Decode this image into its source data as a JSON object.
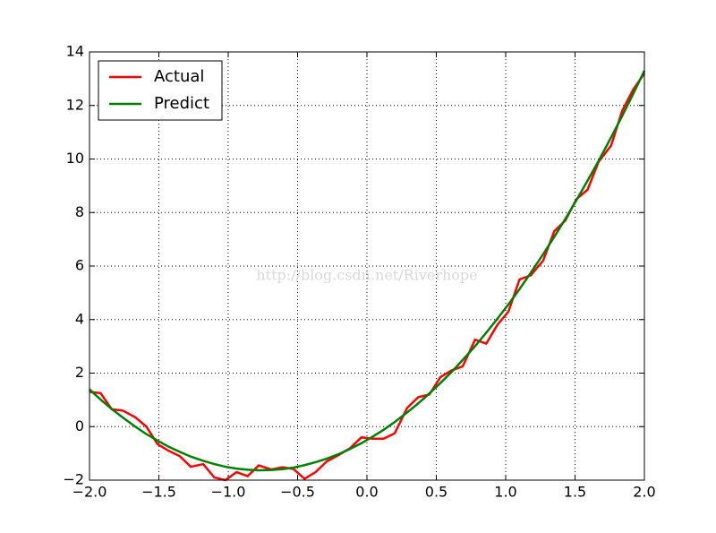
{
  "chart_data": {
    "type": "line",
    "x": [
      -2.0,
      -1.92,
      -1.84,
      -1.76,
      -1.67,
      -1.59,
      -1.51,
      -1.43,
      -1.35,
      -1.27,
      -1.18,
      -1.1,
      -1.02,
      -0.94,
      -0.86,
      -0.78,
      -0.69,
      -0.61,
      -0.53,
      -0.45,
      -0.37,
      -0.29,
      -0.2,
      -0.12,
      -0.04,
      0.04,
      0.12,
      0.2,
      0.29,
      0.37,
      0.45,
      0.53,
      0.61,
      0.69,
      0.78,
      0.86,
      0.94,
      1.02,
      1.1,
      1.18,
      1.27,
      1.35,
      1.43,
      1.51,
      1.59,
      1.67,
      1.76,
      1.84,
      1.92,
      2.0
    ],
    "series": [
      {
        "name": "Actual",
        "color": "#ff0000",
        "values": [
          1.3,
          1.25,
          0.65,
          0.6,
          0.35,
          0.0,
          -0.65,
          -0.9,
          -1.1,
          -1.5,
          -1.4,
          -1.9,
          -2.0,
          -1.7,
          -1.85,
          -1.45,
          -1.6,
          -1.52,
          -1.58,
          -1.95,
          -1.7,
          -1.3,
          -1.05,
          -0.8,
          -0.4,
          -0.45,
          -0.45,
          -0.25,
          0.7,
          1.1,
          1.2,
          1.85,
          2.1,
          2.25,
          3.25,
          3.1,
          3.8,
          4.3,
          5.5,
          5.65,
          6.2,
          7.3,
          7.7,
          8.5,
          8.85,
          9.9,
          10.5,
          11.8,
          12.6,
          13.2
        ]
      },
      {
        "name": "Predict",
        "color": "#008000",
        "values": [
          1.39,
          1.01,
          0.66,
          0.34,
          0.0,
          -0.28,
          -0.52,
          -0.75,
          -0.94,
          -1.12,
          -1.28,
          -1.4,
          -1.5,
          -1.57,
          -1.61,
          -1.63,
          -1.62,
          -1.59,
          -1.53,
          -1.44,
          -1.33,
          -1.2,
          -1.02,
          -0.83,
          -0.62,
          -0.38,
          -0.12,
          0.17,
          0.53,
          0.87,
          1.24,
          1.63,
          2.04,
          2.49,
          3.01,
          3.51,
          4.03,
          4.57,
          5.14,
          5.74,
          6.44,
          7.09,
          7.76,
          8.46,
          9.19,
          9.93,
          10.81,
          11.61,
          12.44,
          13.3
        ]
      }
    ],
    "xlim": [
      -2,
      2
    ],
    "xticks": [
      {
        "value": -2,
        "label": "−2.0"
      },
      {
        "value": -1.5,
        "label": "−1.5"
      },
      {
        "value": -1,
        "label": "−1.0"
      },
      {
        "value": -0.5,
        "label": "−0.5"
      },
      {
        "value": 0,
        "label": "0.0"
      },
      0.5,
      {
        "value": 1,
        "label": "1.0"
      },
      1.5,
      {
        "value": 2,
        "label": "2.0"
      }
    ],
    "ylim": [
      -2,
      14
    ],
    "yticks": [
      {
        "value": -2,
        "label": "−2"
      },
      0,
      2,
      4,
      6,
      8,
      10,
      12,
      14
    ],
    "grid": true,
    "legend": "upper left",
    "annotation": "http://blog.csdn.net/Riverhope"
  }
}
